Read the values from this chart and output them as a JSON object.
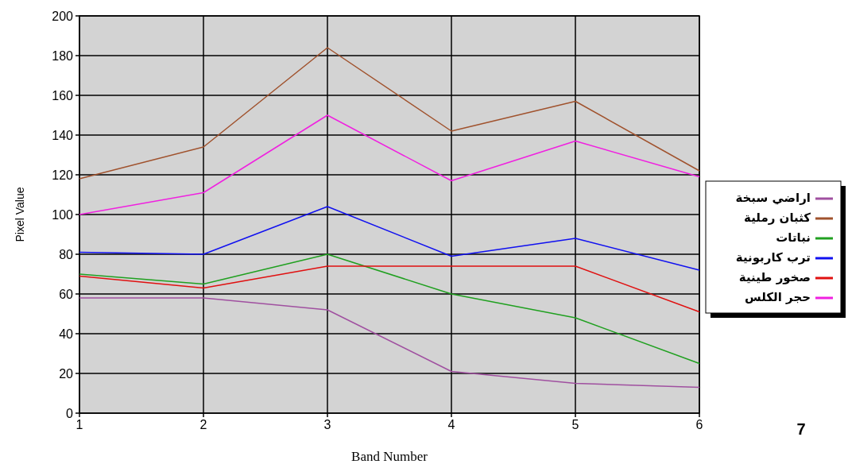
{
  "chart_data": {
    "type": "line",
    "xlabel": "Band Number",
    "ylabel": "Pixel Value",
    "x": [
      1,
      2,
      3,
      4,
      5,
      6
    ],
    "xlim": [
      1,
      6
    ],
    "ylim": [
      0,
      200
    ],
    "xticks": [
      1,
      2,
      3,
      4,
      5,
      6
    ],
    "yticks": [
      0,
      20,
      40,
      60,
      80,
      100,
      120,
      140,
      160,
      180,
      200
    ],
    "grid": true,
    "legend": "right",
    "marker": "none",
    "line_style": "solid",
    "annotations": [
      "7"
    ],
    "series": [
      {
        "name": "اراضي سبخة",
        "color": "#a050a0",
        "values": [
          58,
          58,
          52,
          21,
          15,
          13
        ]
      },
      {
        "name": "كثبان رملية",
        "color": "#a0522d",
        "values": [
          118,
          134,
          184,
          142,
          157,
          122
        ]
      },
      {
        "name": "نباتات",
        "color": "#20a020",
        "values": [
          70,
          65,
          80,
          60,
          48,
          25
        ]
      },
      {
        "name": "ترب كاربونية",
        "color": "#1010f0",
        "values": [
          81,
          80,
          104,
          79,
          88,
          72
        ]
      },
      {
        "name": "صخور طينية",
        "color": "#e01010",
        "values": [
          69,
          63,
          74,
          74,
          74,
          51
        ]
      },
      {
        "name": "حجر الكلس",
        "color": "#f020e0",
        "values": [
          100,
          111,
          150,
          117,
          137,
          119
        ]
      }
    ]
  }
}
